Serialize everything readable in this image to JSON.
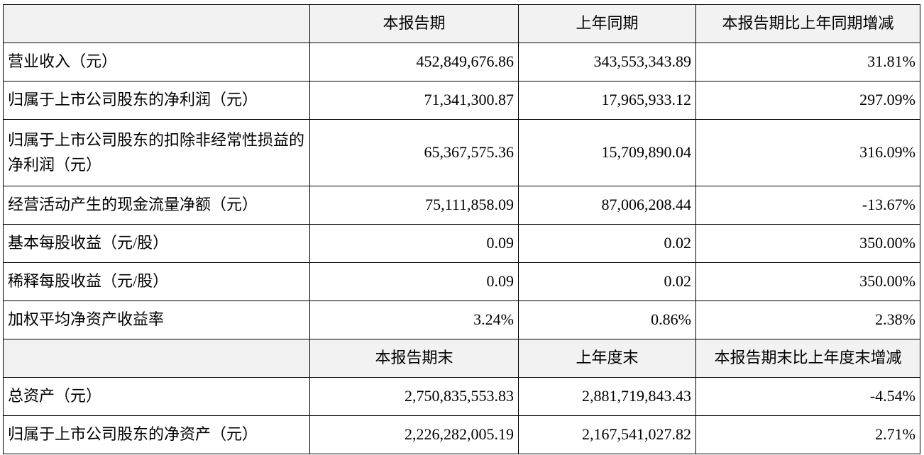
{
  "table": {
    "sections": [
      {
        "header": [
          "本报告期",
          "上年同期",
          "本报告期比上年同期增减"
        ],
        "rows": [
          {
            "label": "营业收入（元）",
            "values": [
              "452,849,676.86",
              "343,553,343.89",
              "31.81%"
            ]
          },
          {
            "label": "归属于上市公司股东的净利润（元）",
            "values": [
              "71,341,300.87",
              "17,965,933.12",
              "297.09%"
            ]
          },
          {
            "label": "归属于上市公司股东的扣除非经常性损益的净利润（元）",
            "values": [
              "65,367,575.36",
              "15,709,890.04",
              "316.09%"
            ]
          },
          {
            "label": "经营活动产生的现金流量净额（元）",
            "values": [
              "75,111,858.09",
              "87,006,208.44",
              "-13.67%"
            ]
          },
          {
            "label": "基本每股收益（元/股）",
            "values": [
              "0.09",
              "0.02",
              "350.00%"
            ]
          },
          {
            "label": "稀释每股收益（元/股）",
            "values": [
              "0.09",
              "0.02",
              "350.00%"
            ]
          },
          {
            "label": "加权平均净资产收益率",
            "values": [
              "3.24%",
              "0.86%",
              "2.38%"
            ]
          }
        ]
      },
      {
        "header": [
          "本报告期末",
          "上年度末",
          "本报告期末比上年度末增减"
        ],
        "rows": [
          {
            "label": "总资产（元）",
            "values": [
              "2,750,835,553.83",
              "2,881,719,843.43",
              "-4.54%"
            ]
          },
          {
            "label": "归属于上市公司股东的净资产（元）",
            "values": [
              "2,226,282,005.19",
              "2,167,541,027.82",
              "2.71%"
            ]
          }
        ]
      }
    ]
  }
}
